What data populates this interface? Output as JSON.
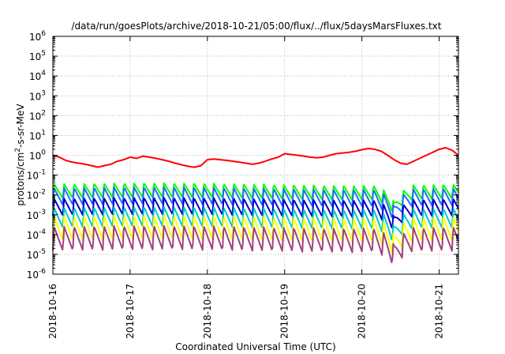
{
  "chart_data": {
    "type": "line",
    "title": "/data/run/goesPlots/archive/2018-10-21/05:00/flux/../flux/5daysMarsFluxes.txt",
    "xlabel": "Coordinated Universal Time (UTC)",
    "ylabel": "protons/cm²-s-sr-MeV",
    "ylabel_parts": {
      "pre": "protons/cm",
      "sup": "2",
      "post": "-s-sr-MeV"
    },
    "yscale": "log",
    "ylim": [
      1e-06,
      1000000.0
    ],
    "xlim": [
      "2018-10-16T00:00",
      "2018-10-21T06:00"
    ],
    "grid": true,
    "y_ticks": [
      {
        "value": 1e-06,
        "base": "10",
        "exp": "-6"
      },
      {
        "value": 1e-05,
        "base": "10",
        "exp": "-5"
      },
      {
        "value": 0.0001,
        "base": "10",
        "exp": "-4"
      },
      {
        "value": 0.001,
        "base": "10",
        "exp": "-3"
      },
      {
        "value": 0.01,
        "base": "10",
        "exp": "-2"
      },
      {
        "value": 0.1,
        "base": "10",
        "exp": "-1"
      },
      {
        "value": 1,
        "base": "10",
        "exp": "0"
      },
      {
        "value": 10,
        "base": "10",
        "exp": "1"
      },
      {
        "value": 100,
        "base": "10",
        "exp": "2"
      },
      {
        "value": 1000,
        "base": "10",
        "exp": "3"
      },
      {
        "value": 10000,
        "base": "10",
        "exp": "4"
      },
      {
        "value": 100000,
        "base": "10",
        "exp": "5"
      },
      {
        "value": 1000000,
        "base": "10",
        "exp": "6"
      }
    ],
    "x_ticks": [
      {
        "date": "2018-10-16T00:00",
        "label": "2018-10-16"
      },
      {
        "date": "2018-10-17T00:00",
        "label": "2018-10-17"
      },
      {
        "date": "2018-10-18T00:00",
        "label": "2018-10-18"
      },
      {
        "date": "2018-10-19T00:00",
        "label": "2018-10-19"
      },
      {
        "date": "2018-10-20T00:00",
        "label": "2018-10-20"
      },
      {
        "date": "2018-10-21T00:00",
        "label": "2018-10-21"
      }
    ],
    "series": [
      {
        "color": "#ff0000",
        "values": [
          [
            "2018-10-16T00:00",
            1.0
          ],
          [
            "2018-10-16T02:00",
            0.8
          ],
          [
            "2018-10-16T04:00",
            0.55
          ],
          [
            "2018-10-16T06:00",
            0.45
          ],
          [
            "2018-10-16T08:00",
            0.4
          ],
          [
            "2018-10-16T10:00",
            0.35
          ],
          [
            "2018-10-16T12:00",
            0.3
          ],
          [
            "2018-10-16T14:00",
            0.25
          ],
          [
            "2018-10-16T16:00",
            0.3
          ],
          [
            "2018-10-16T18:00",
            0.35
          ],
          [
            "2018-10-16T20:00",
            0.5
          ],
          [
            "2018-10-16T22:00",
            0.6
          ],
          [
            "2018-10-17T00:00",
            0.8
          ],
          [
            "2018-10-17T02:00",
            0.7
          ],
          [
            "2018-10-17T04:00",
            0.9
          ],
          [
            "2018-10-17T06:00",
            0.8
          ],
          [
            "2018-10-17T08:00",
            0.7
          ],
          [
            "2018-10-17T10:00",
            0.6
          ],
          [
            "2018-10-17T12:00",
            0.5
          ],
          [
            "2018-10-17T14:00",
            0.4
          ],
          [
            "2018-10-17T16:00",
            0.33
          ],
          [
            "2018-10-17T18:00",
            0.28
          ],
          [
            "2018-10-17T20:00",
            0.25
          ],
          [
            "2018-10-17T22:00",
            0.3
          ],
          [
            "2018-10-18T00:00",
            0.6
          ],
          [
            "2018-10-18T02:00",
            0.65
          ],
          [
            "2018-10-18T04:00",
            0.6
          ],
          [
            "2018-10-18T06:00",
            0.55
          ],
          [
            "2018-10-18T08:00",
            0.5
          ],
          [
            "2018-10-18T10:00",
            0.45
          ],
          [
            "2018-10-18T12:00",
            0.4
          ],
          [
            "2018-10-18T14:00",
            0.35
          ],
          [
            "2018-10-18T16:00",
            0.4
          ],
          [
            "2018-10-18T18:00",
            0.5
          ],
          [
            "2018-10-18T20:00",
            0.65
          ],
          [
            "2018-10-18T22:00",
            0.8
          ],
          [
            "2018-10-19T00:00",
            1.2
          ],
          [
            "2018-10-19T02:00",
            1.1
          ],
          [
            "2018-10-19T04:00",
            1.0
          ],
          [
            "2018-10-19T06:00",
            0.9
          ],
          [
            "2018-10-19T08:00",
            0.8
          ],
          [
            "2018-10-19T10:00",
            0.75
          ],
          [
            "2018-10-19T12:00",
            0.8
          ],
          [
            "2018-10-19T14:00",
            1.0
          ],
          [
            "2018-10-19T16:00",
            1.2
          ],
          [
            "2018-10-19T18:00",
            1.3
          ],
          [
            "2018-10-19T20:00",
            1.4
          ],
          [
            "2018-10-19T22:00",
            1.6
          ],
          [
            "2018-10-20T00:00",
            1.9
          ],
          [
            "2018-10-20T02:00",
            2.2
          ],
          [
            "2018-10-20T04:00",
            2.0
          ],
          [
            "2018-10-20T06:00",
            1.6
          ],
          [
            "2018-10-20T08:00",
            1.0
          ],
          [
            "2018-10-20T10:00",
            0.6
          ],
          [
            "2018-10-20T12:00",
            0.4
          ],
          [
            "2018-10-20T14:00",
            0.35
          ],
          [
            "2018-10-20T16:00",
            0.5
          ],
          [
            "2018-10-20T18:00",
            0.7
          ],
          [
            "2018-10-20T20:00",
            1.0
          ],
          [
            "2018-10-20T22:00",
            1.4
          ],
          [
            "2018-10-21T00:00",
            2.0
          ],
          [
            "2018-10-21T02:00",
            2.4
          ],
          [
            "2018-10-21T04:00",
            1.8
          ],
          [
            "2018-10-21T06:00",
            1.0
          ]
        ]
      },
      {
        "color": "#00ff00",
        "upper": 0.035,
        "lower": 0.0065
      },
      {
        "color": "#1e6fff",
        "upper": 0.022,
        "lower": 0.003
      },
      {
        "color": "#0000c8",
        "upper": 0.0065,
        "lower": 0.0009
      },
      {
        "color": "#00c8c8",
        "upper": 0.0022,
        "lower": 0.00022
      },
      {
        "color": "#ffff00",
        "upper": 0.0008,
        "lower": 5e-05
      },
      {
        "color": "#a04080",
        "upper": 0.00025,
        "lower": 1.5e-05
      }
    ]
  }
}
